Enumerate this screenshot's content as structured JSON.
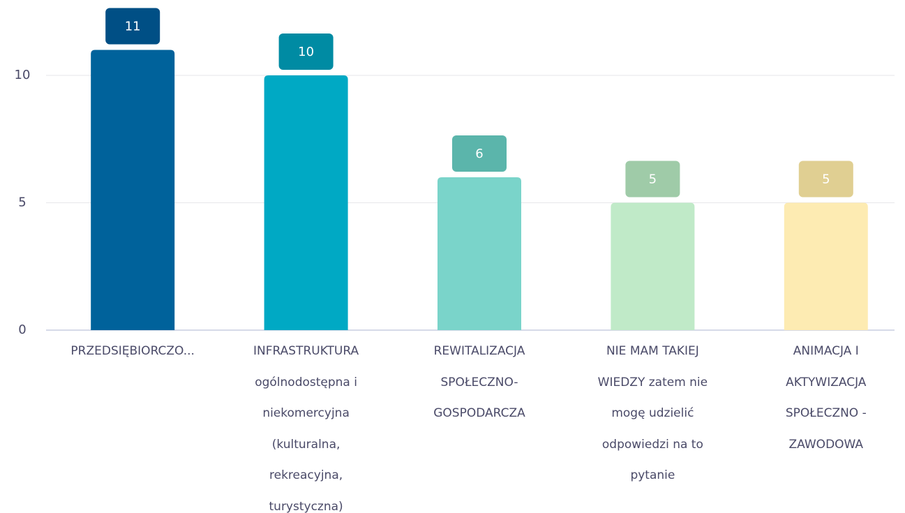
{
  "chart_data": {
    "type": "bar",
    "categories": [
      "PRZEDSIĘBIORCZO...",
      "INFRASTRUKTURA ogólnodostępna i niekomercyjna (kulturalna, rekreacyjna, turystyczna)",
      "REWITALIZACJA SPOŁECZNO-GOSPODARCZA",
      "NIE MAM TAKIEJ WIEDZY zatem nie mogę udzielić odpowiedzi na to pytanie",
      "ANIMACJA I AKTYWIZACJA SPOŁECZNO - ZAWODOWA"
    ],
    "values": [
      11,
      10,
      6,
      5,
      5
    ],
    "colors": [
      "#00629b",
      "#00a9c4",
      "#7ad4ca",
      "#c0eac8",
      "#fdebb2"
    ],
    "label_colors": [
      "#004f85",
      "#008ba3",
      "#5bb5ab",
      "#9fcba8",
      "#e0cf92"
    ],
    "ylim": [
      0,
      12
    ],
    "yticks": [
      0,
      5,
      10
    ],
    "grid": true
  }
}
